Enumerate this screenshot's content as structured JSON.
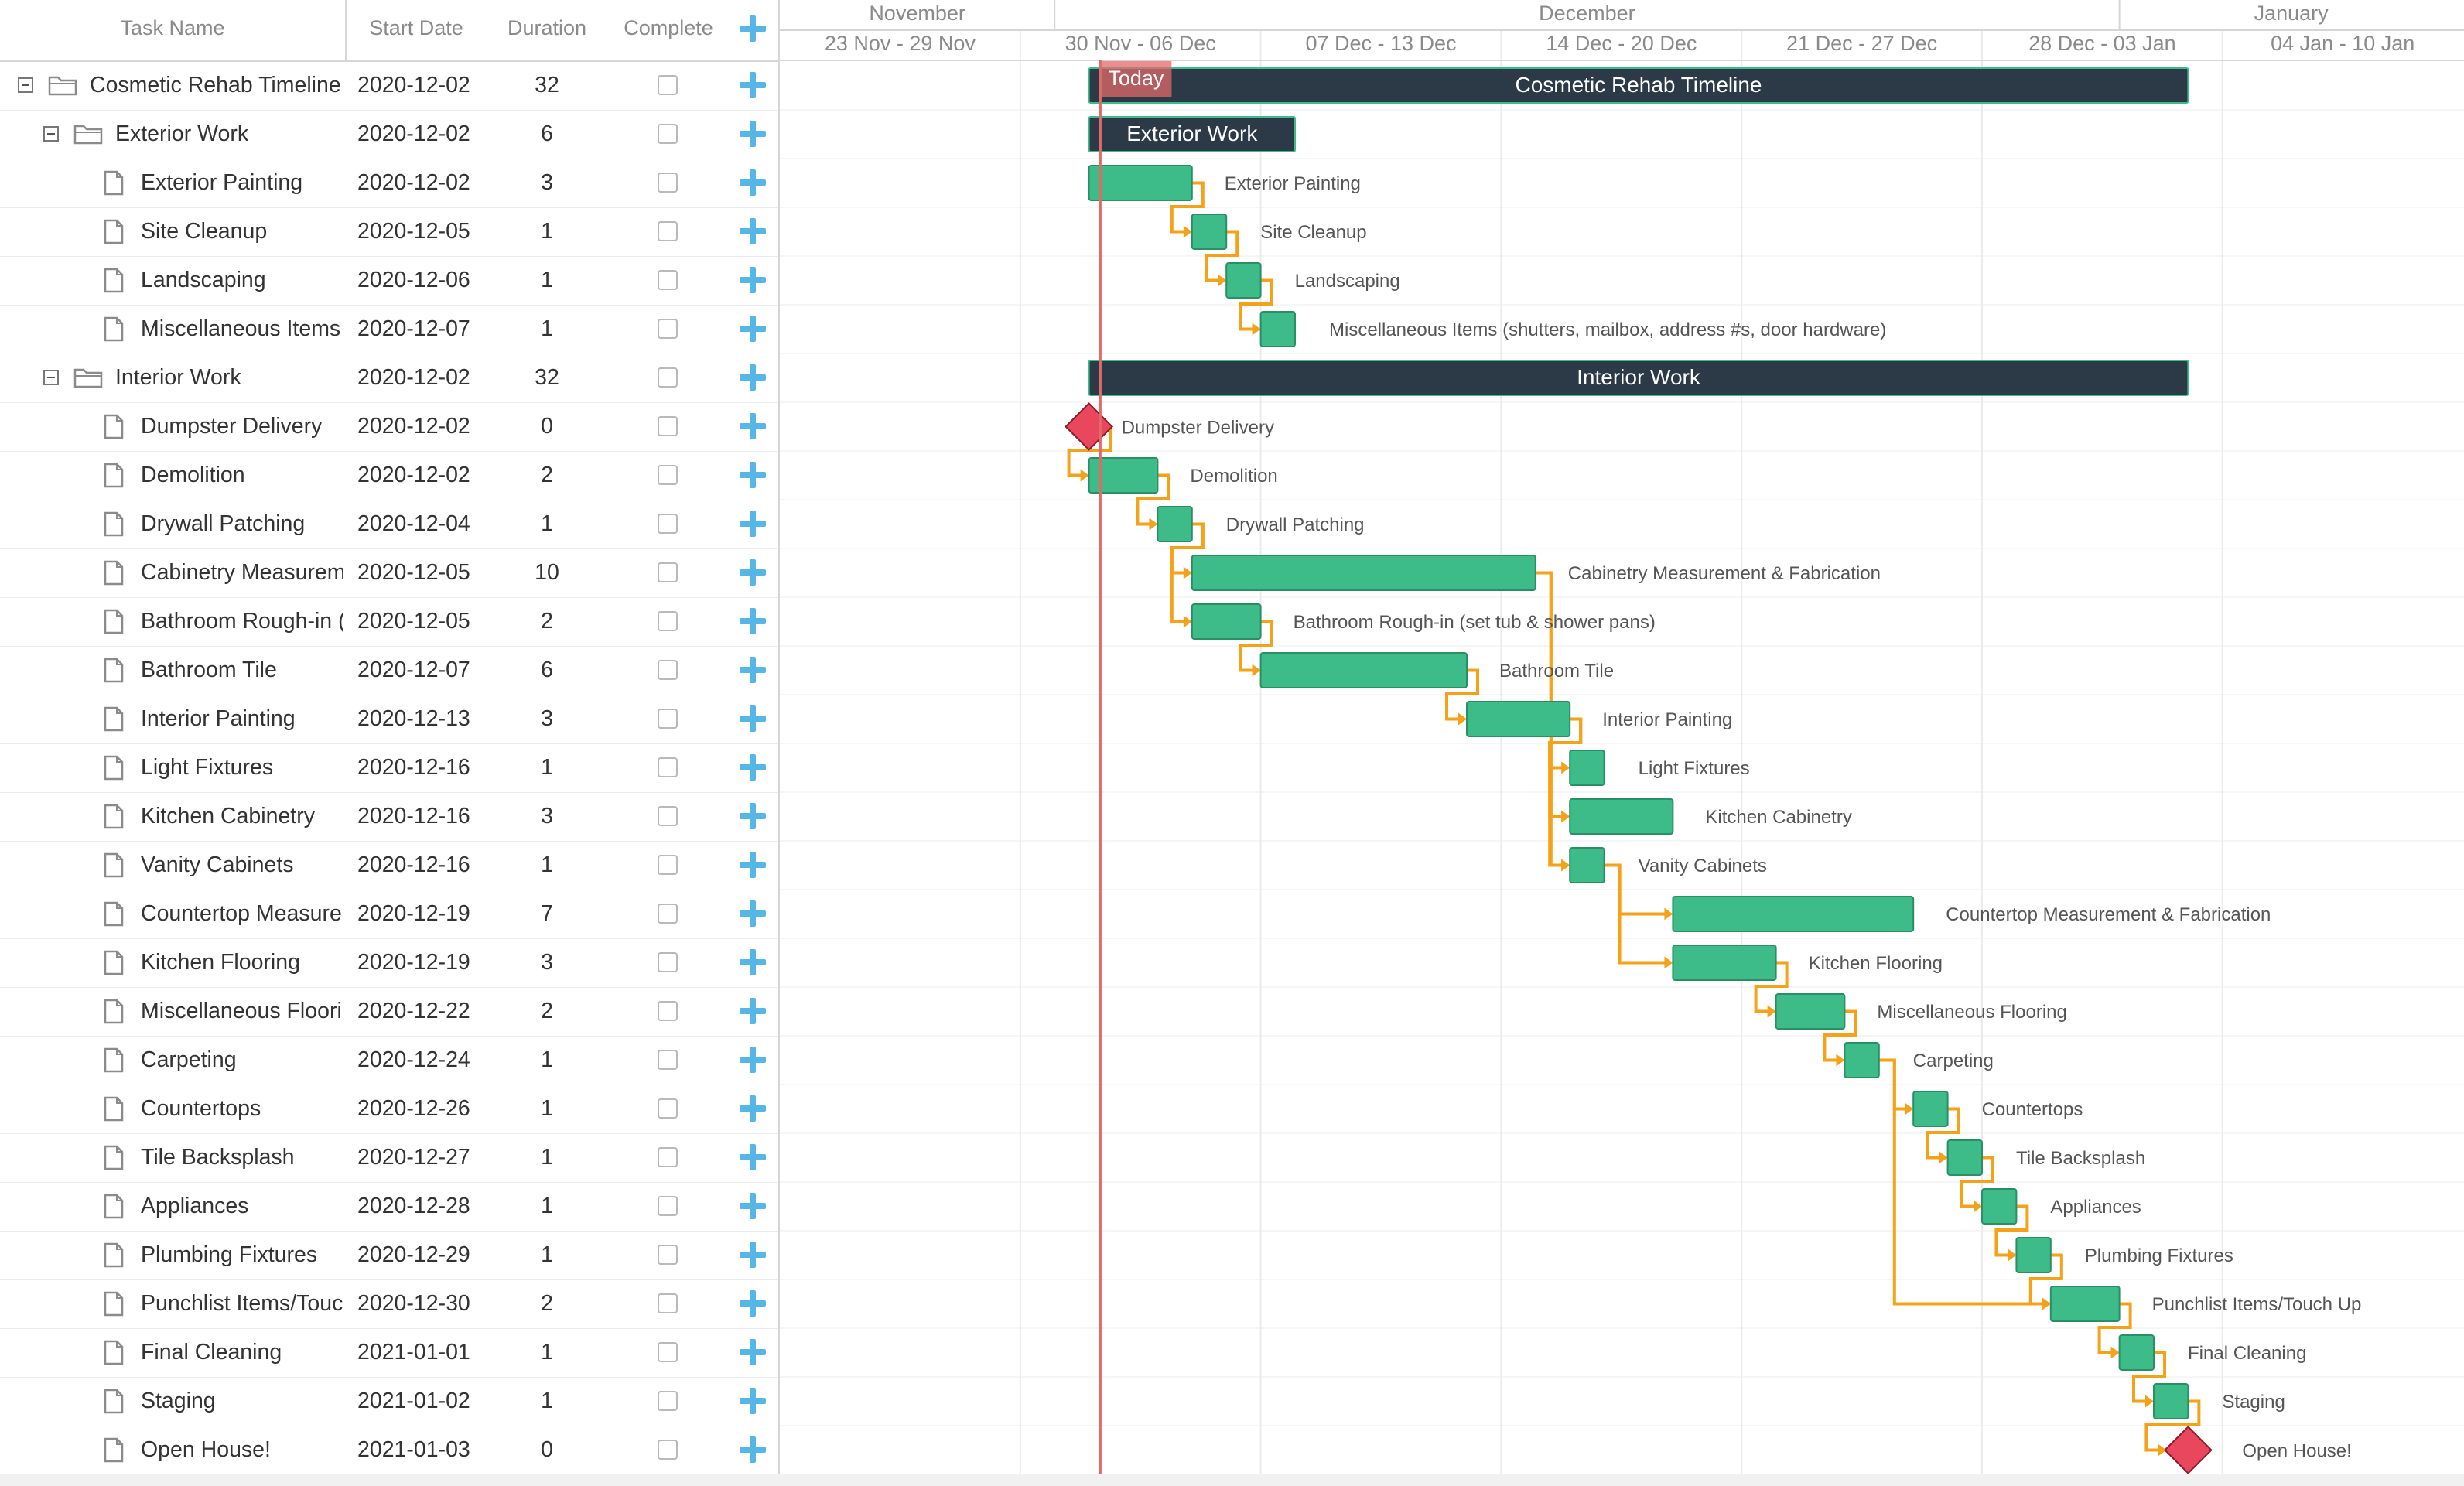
{
  "columns": {
    "task_name": "Task Name",
    "start_date": "Start Date",
    "duration": "Duration",
    "complete": "Complete"
  },
  "timeline": {
    "months": [
      "November",
      "December",
      "January"
    ],
    "weeks": [
      "23 Nov - 29 Nov",
      "30 Nov - 06 Dec",
      "07 Dec - 13 Dec",
      "14 Dec - 20 Dec",
      "21 Dec - 27 Dec",
      "28 Dec - 03 Jan",
      "04 Jan - 10 Jan"
    ],
    "today_label": "Today",
    "today_date": "2020-12-02"
  },
  "colors": {
    "task_bar": "#3dbb89",
    "summary_bar": "#2c3a47",
    "milestone": "#e8475e",
    "link": "#f5a21b",
    "today_line": "#e06a6a",
    "add_icon": "#56b7e6"
  },
  "icons": {
    "collapse": "minus-box-icon",
    "summary": "folder-open-icon",
    "task": "file-icon",
    "add": "plus-icon"
  },
  "tasks": [
    {
      "id": "1",
      "name": "Cosmetic Rehab Timeline",
      "bar_label": "Cosmetic Rehab Timeline",
      "start": "2020-12-02",
      "duration": "32",
      "type": "project",
      "level": 0
    },
    {
      "id": "2",
      "name": "Exterior Work",
      "bar_label": "Exterior Work",
      "start": "2020-12-02",
      "duration": "6",
      "type": "project",
      "level": 1
    },
    {
      "id": "3",
      "name": "Exterior Painting",
      "bar_label": "Exterior Painting",
      "start": "2020-12-02",
      "duration": "3",
      "type": "task",
      "level": 2
    },
    {
      "id": "4",
      "name": "Site Cleanup",
      "bar_label": "Site Cleanup",
      "start": "2020-12-05",
      "duration": "1",
      "type": "task",
      "level": 2
    },
    {
      "id": "5",
      "name": "Landscaping",
      "bar_label": "Landscaping",
      "start": "2020-12-06",
      "duration": "1",
      "type": "task",
      "level": 2
    },
    {
      "id": "6",
      "name": "Miscellaneous Items",
      "bar_label": "Miscellaneous Items (shutters, mailbox, address #s, door hardware)",
      "start": "2020-12-07",
      "duration": "1",
      "type": "task",
      "level": 2
    },
    {
      "id": "7",
      "name": "Interior Work",
      "bar_label": "Interior Work",
      "start": "2020-12-02",
      "duration": "32",
      "type": "project",
      "level": 1
    },
    {
      "id": "8",
      "name": "Dumpster Delivery",
      "bar_label": "Dumpster Delivery",
      "start": "2020-12-02",
      "duration": "0",
      "type": "milestone",
      "level": 2
    },
    {
      "id": "9",
      "name": "Demolition",
      "bar_label": "Demolition",
      "start": "2020-12-02",
      "duration": "2",
      "type": "task",
      "level": 2
    },
    {
      "id": "10",
      "name": "Drywall Patching",
      "bar_label": "Drywall Patching",
      "start": "2020-12-04",
      "duration": "1",
      "type": "task",
      "level": 2
    },
    {
      "id": "11",
      "name": "Cabinetry Measurem",
      "bar_label": "Cabinetry Measurement & Fabrication",
      "start": "2020-12-05",
      "duration": "10",
      "type": "task",
      "level": 2
    },
    {
      "id": "12",
      "name": "Bathroom Rough-in (",
      "bar_label": "Bathroom Rough-in (set tub & shower pans)",
      "start": "2020-12-05",
      "duration": "2",
      "type": "task",
      "level": 2
    },
    {
      "id": "13",
      "name": "Bathroom Tile",
      "bar_label": "Bathroom Tile",
      "start": "2020-12-07",
      "duration": "6",
      "type": "task",
      "level": 2
    },
    {
      "id": "14",
      "name": "Interior Painting",
      "bar_label": "Interior Painting",
      "start": "2020-12-13",
      "duration": "3",
      "type": "task",
      "level": 2
    },
    {
      "id": "15",
      "name": "Light Fixtures",
      "bar_label": "Light Fixtures",
      "start": "2020-12-16",
      "duration": "1",
      "type": "task",
      "level": 2
    },
    {
      "id": "16",
      "name": "Kitchen Cabinetry",
      "bar_label": "Kitchen Cabinetry",
      "start": "2020-12-16",
      "duration": "3",
      "type": "task",
      "level": 2
    },
    {
      "id": "17",
      "name": "Vanity Cabinets",
      "bar_label": "Vanity Cabinets",
      "start": "2020-12-16",
      "duration": "1",
      "type": "task",
      "level": 2
    },
    {
      "id": "18",
      "name": "Countertop Measure",
      "bar_label": "Countertop Measurement & Fabrication",
      "start": "2020-12-19",
      "duration": "7",
      "type": "task",
      "level": 2
    },
    {
      "id": "19",
      "name": "Kitchen Flooring",
      "bar_label": "Kitchen Flooring",
      "start": "2020-12-19",
      "duration": "3",
      "type": "task",
      "level": 2
    },
    {
      "id": "20",
      "name": "Miscellaneous Floori",
      "bar_label": "Miscellaneous Flooring",
      "start": "2020-12-22",
      "duration": "2",
      "type": "task",
      "level": 2
    },
    {
      "id": "21",
      "name": "Carpeting",
      "bar_label": "Carpeting",
      "start": "2020-12-24",
      "duration": "1",
      "type": "task",
      "level": 2
    },
    {
      "id": "22",
      "name": "Countertops",
      "bar_label": "Countertops",
      "start": "2020-12-26",
      "duration": "1",
      "type": "task",
      "level": 2
    },
    {
      "id": "23",
      "name": "Tile Backsplash",
      "bar_label": "Tile Backsplash",
      "start": "2020-12-27",
      "duration": "1",
      "type": "task",
      "level": 2
    },
    {
      "id": "24",
      "name": "Appliances",
      "bar_label": "Appliances",
      "start": "2020-12-28",
      "duration": "1",
      "type": "task",
      "level": 2
    },
    {
      "id": "25",
      "name": "Plumbing Fixtures",
      "bar_label": "Plumbing Fixtures",
      "start": "2020-12-29",
      "duration": "1",
      "type": "task",
      "level": 2
    },
    {
      "id": "26",
      "name": "Punchlist Items/Touc",
      "bar_label": "Punchlist Items/Touch Up",
      "start": "2020-12-30",
      "duration": "2",
      "type": "task",
      "level": 2
    },
    {
      "id": "27",
      "name": "Final Cleaning",
      "bar_label": "Final Cleaning",
      "start": "2021-01-01",
      "duration": "1",
      "type": "task",
      "level": 2
    },
    {
      "id": "28",
      "name": "Staging",
      "bar_label": "Staging",
      "start": "2021-01-02",
      "duration": "1",
      "type": "task",
      "level": 2
    },
    {
      "id": "29",
      "name": "Open House!",
      "bar_label": "Open House!",
      "start": "2021-01-03",
      "duration": "0",
      "type": "milestone",
      "level": 2
    }
  ],
  "links": [
    [
      "3",
      "4"
    ],
    [
      "4",
      "5"
    ],
    [
      "5",
      "6"
    ],
    [
      "8",
      "9"
    ],
    [
      "9",
      "10"
    ],
    [
      "10",
      "11"
    ],
    [
      "10",
      "12"
    ],
    [
      "12",
      "13"
    ],
    [
      "13",
      "14"
    ],
    [
      "14",
      "15"
    ],
    [
      "14",
      "16"
    ],
    [
      "14",
      "17"
    ],
    [
      "11",
      "16"
    ],
    [
      "11",
      "17"
    ],
    [
      "17",
      "18"
    ],
    [
      "17",
      "19"
    ],
    [
      "19",
      "20"
    ],
    [
      "20",
      "21"
    ],
    [
      "21",
      "22"
    ],
    [
      "22",
      "23"
    ],
    [
      "23",
      "24"
    ],
    [
      "24",
      "25"
    ],
    [
      "25",
      "26"
    ],
    [
      "21",
      "26"
    ],
    [
      "26",
      "27"
    ],
    [
      "27",
      "28"
    ],
    [
      "28",
      "29"
    ]
  ]
}
